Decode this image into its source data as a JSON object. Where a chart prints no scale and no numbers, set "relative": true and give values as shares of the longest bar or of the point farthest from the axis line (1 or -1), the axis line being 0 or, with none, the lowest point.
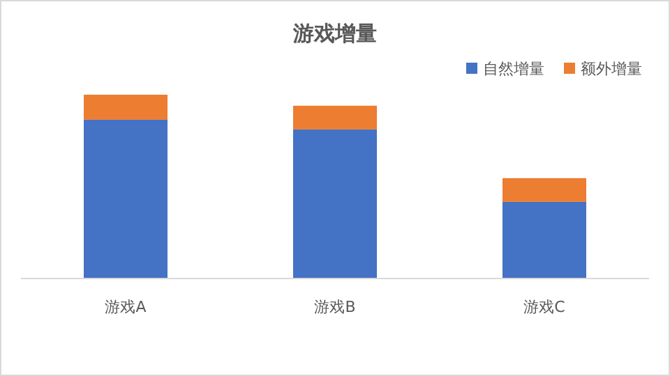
{
  "chart_data": {
    "type": "bar",
    "title": "游戏增量",
    "categories": [
      "游戏A",
      "游戏B",
      "游戏C"
    ],
    "stacked": true,
    "relative": true,
    "legend": "top right",
    "series": [
      {
        "name": "自然增量",
        "color": "#4472c4",
        "values": [
          0.864,
          0.811,
          0.417
        ]
      },
      {
        "name": "额外增量",
        "color": "#ed7d31",
        "values": [
          0.136,
          0.129,
          0.129
        ]
      }
    ]
  }
}
